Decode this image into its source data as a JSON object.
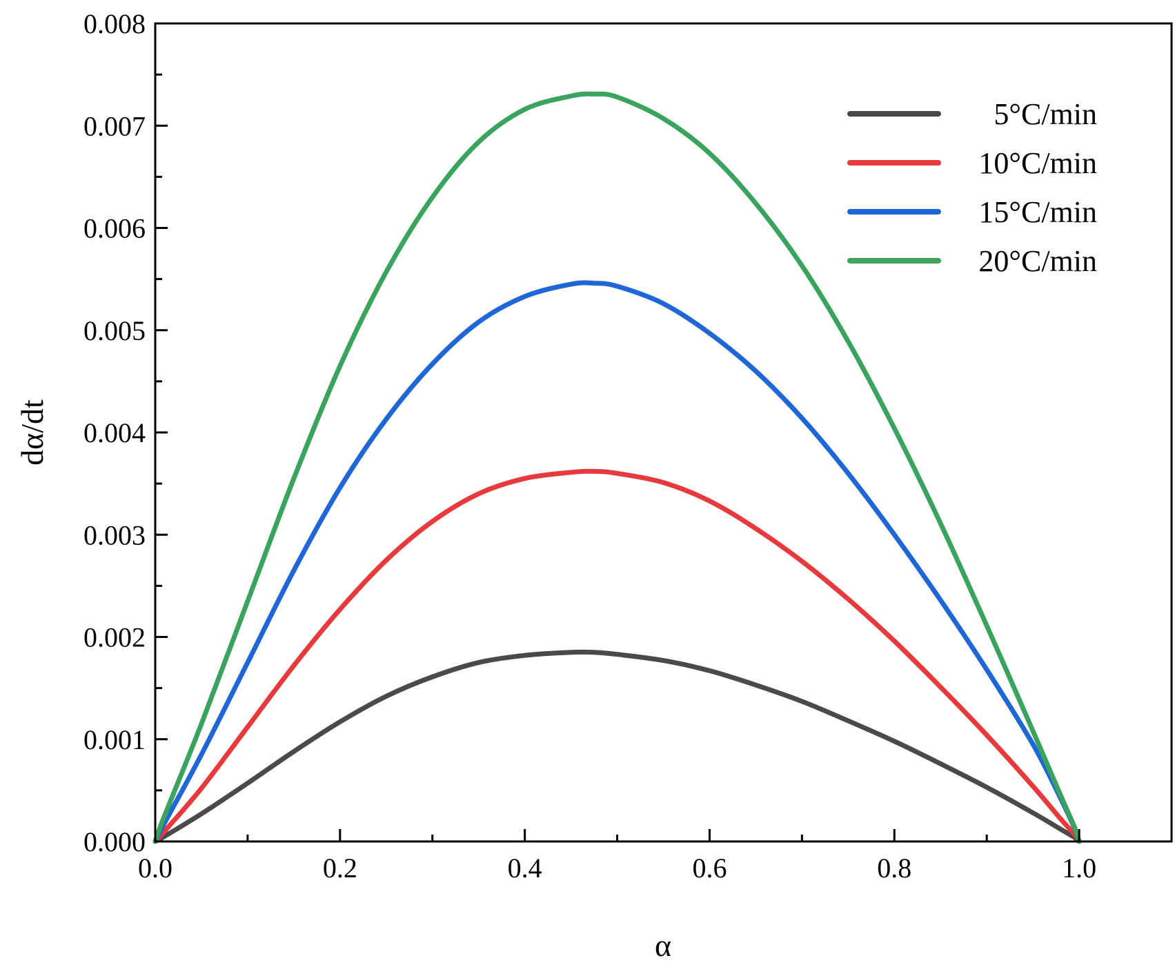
{
  "chart_data": {
    "type": "line",
    "title": "",
    "xlabel": "α",
    "ylabel": "dα/dt",
    "xlim": [
      0.0,
      1.1
    ],
    "ylim": [
      0.0,
      0.008
    ],
    "x_ticks": [
      "0.0",
      "0.2",
      "0.4",
      "0.6",
      "0.8",
      "1.0"
    ],
    "x_tick_values": [
      0.0,
      0.2,
      0.4,
      0.6,
      0.8,
      1.0
    ],
    "y_ticks": [
      "0.000",
      "0.001",
      "0.002",
      "0.003",
      "0.004",
      "0.005",
      "0.006",
      "0.007",
      "0.008"
    ],
    "y_tick_values": [
      0.0,
      0.001,
      0.002,
      0.003,
      0.004,
      0.005,
      0.006,
      0.007,
      0.008
    ],
    "grid": false,
    "legend_position": "top-right",
    "x": [
      0.0,
      0.01,
      0.05,
      0.1,
      0.15,
      0.2,
      0.25,
      0.3,
      0.35,
      0.4,
      0.45,
      0.475,
      0.5,
      0.55,
      0.6,
      0.65,
      0.7,
      0.75,
      0.8,
      0.85,
      0.9,
      0.95,
      0.98,
      0.995,
      1.0
    ],
    "series": [
      {
        "name": "5°C/min",
        "color": "#4a4a4a",
        "values": [
          0.0,
          5e-05,
          0.00027,
          0.00057,
          0.00088,
          0.00117,
          0.00142,
          0.00161,
          0.00175,
          0.00182,
          0.00185,
          0.00185,
          0.00183,
          0.00177,
          0.00167,
          0.00153,
          0.00137,
          0.00118,
          0.00098,
          0.00076,
          0.00053,
          0.00028,
          0.00012,
          4e-05,
          0.0
        ]
      },
      {
        "name": "10°C/min",
        "color": "#e8393d",
        "values": [
          0.0,
          0.0001,
          0.00052,
          0.00112,
          0.00172,
          0.00227,
          0.00275,
          0.00313,
          0.0034,
          0.00355,
          0.00361,
          0.00362,
          0.0036,
          0.00351,
          0.00333,
          0.00306,
          0.00274,
          0.00237,
          0.00196,
          0.00151,
          0.00104,
          0.00054,
          0.00022,
          7e-05,
          0.0
        ]
      },
      {
        "name": "15°C/min",
        "color": "#1f66d6",
        "values": [
          0.0,
          0.00018,
          0.00085,
          0.00175,
          0.00265,
          0.00346,
          0.00413,
          0.00467,
          0.00508,
          0.00533,
          0.00545,
          0.00546,
          0.00543,
          0.00526,
          0.00497,
          0.0046,
          0.00414,
          0.0036,
          0.003,
          0.00236,
          0.00168,
          0.00095,
          0.00042,
          0.00013,
          0.0
        ]
      },
      {
        "name": "20°C/min",
        "color": "#3aa35e",
        "values": [
          0.0,
          0.00025,
          0.00115,
          0.00235,
          0.00355,
          0.00465,
          0.00557,
          0.0063,
          0.00684,
          0.00716,
          0.00729,
          0.00731,
          0.00728,
          0.00707,
          0.00673,
          0.00624,
          0.00563,
          0.00489,
          0.00404,
          0.00311,
          0.00211,
          0.00108,
          0.00045,
          0.00014,
          0.0
        ]
      }
    ]
  }
}
